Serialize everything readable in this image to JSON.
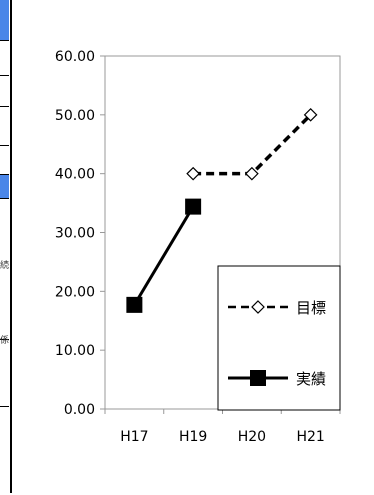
{
  "chart_data": {
    "type": "line",
    "categories": [
      "H17",
      "H19",
      "H20",
      "H21"
    ],
    "y_tick_labels": [
      "0.00",
      "10.00",
      "20.00",
      "30.00",
      "40.00",
      "50.00",
      "60.00"
    ],
    "ylim": [
      0,
      60
    ],
    "grid": false,
    "legend_position": "right",
    "series": [
      {
        "name": "目標",
        "values": [
          null,
          40.0,
          40.0,
          50.0
        ],
        "style": "dashed",
        "marker": "diamond-open",
        "color": "#000000"
      },
      {
        "name": "実績",
        "values": [
          17.7,
          34.4,
          null,
          null
        ],
        "style": "solid",
        "marker": "square-filled",
        "color": "#000000"
      }
    ]
  },
  "left_edge": {
    "glyphs": [
      "続",
      "係"
    ]
  }
}
